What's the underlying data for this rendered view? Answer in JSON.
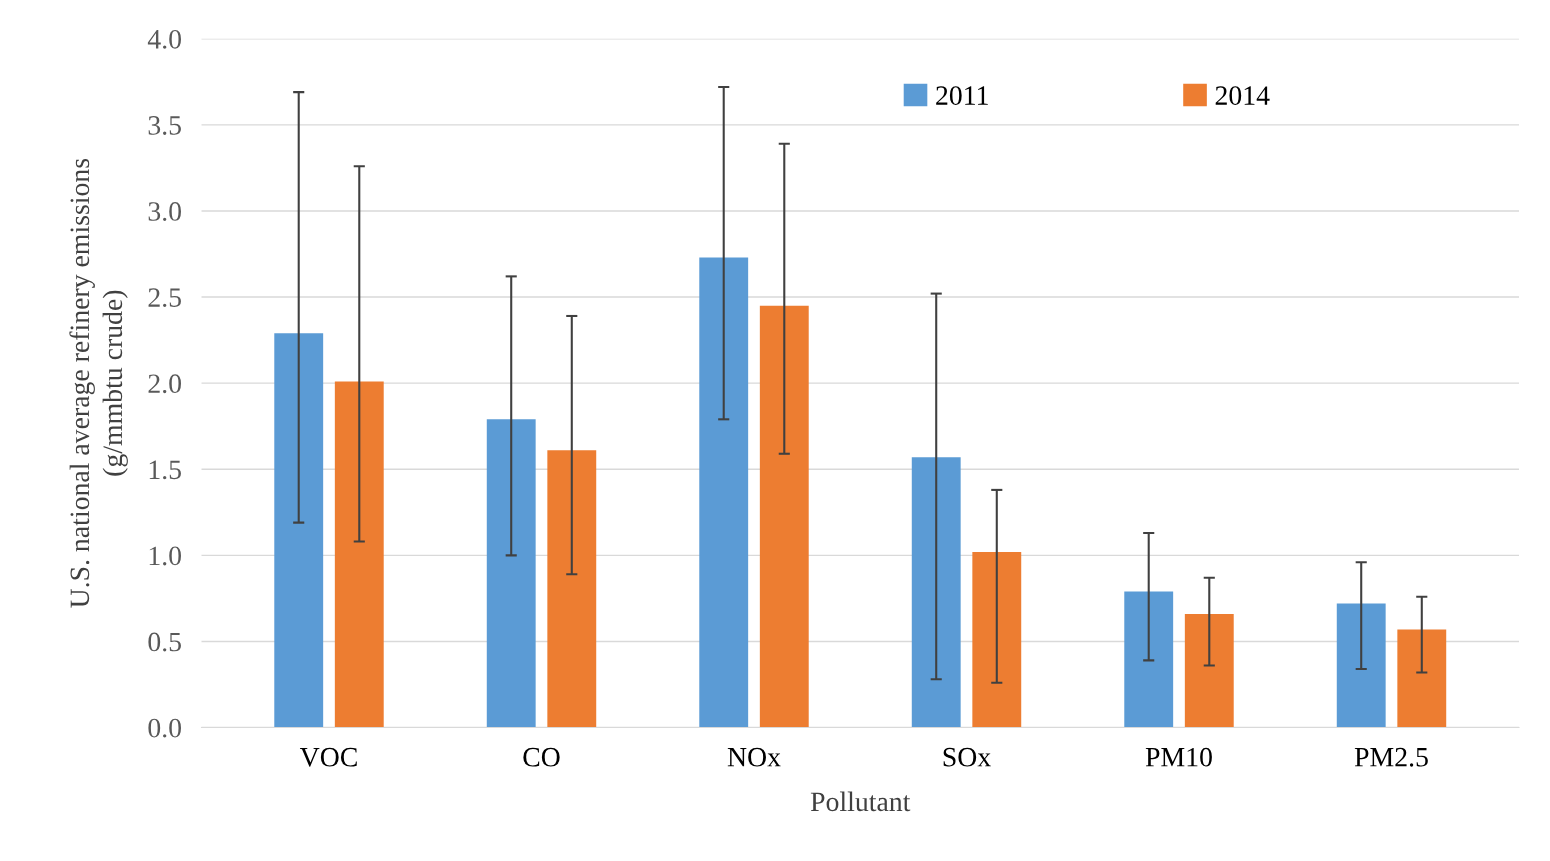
{
  "chart_data": {
    "type": "bar",
    "xlabel": "Pollutant",
    "ylabel": "U.S. national average refinery emissions\n(g/mmbtu crude)",
    "categories": [
      "VOC",
      "CO",
      "NOx",
      "SOx",
      "PM10",
      "PM2.5"
    ],
    "series": [
      {
        "name": "2011",
        "color": "#5b9bd5",
        "values": [
          2.29,
          1.79,
          2.73,
          1.57,
          0.79,
          0.72
        ],
        "errors": [
          [
            1.19,
            3.69
          ],
          [
            1.0,
            2.62
          ],
          [
            1.79,
            3.72
          ],
          [
            0.28,
            2.52
          ],
          [
            0.39,
            1.13
          ],
          [
            0.34,
            0.96
          ]
        ]
      },
      {
        "name": "2014",
        "color": "#ed7d31",
        "values": [
          2.01,
          1.61,
          2.45,
          1.02,
          0.66,
          0.57
        ],
        "errors": [
          [
            1.08,
            3.26
          ],
          [
            0.89,
            2.39
          ],
          [
            1.59,
            3.39
          ],
          [
            0.26,
            1.38
          ],
          [
            0.36,
            0.87
          ],
          [
            0.32,
            0.76
          ]
        ]
      }
    ],
    "ylim": [
      0,
      4
    ],
    "yticks": [
      {
        "value": 0,
        "label": "0.0"
      },
      0.5,
      {
        "value": 1,
        "label": "1.0"
      },
      1.5,
      {
        "value": 2,
        "label": "2.0"
      },
      2.5,
      {
        "value": 3,
        "label": "3.0"
      },
      3.5,
      {
        "value": 4,
        "label": "4.0"
      }
    ],
    "grid": "y",
    "legend": "top right"
  }
}
